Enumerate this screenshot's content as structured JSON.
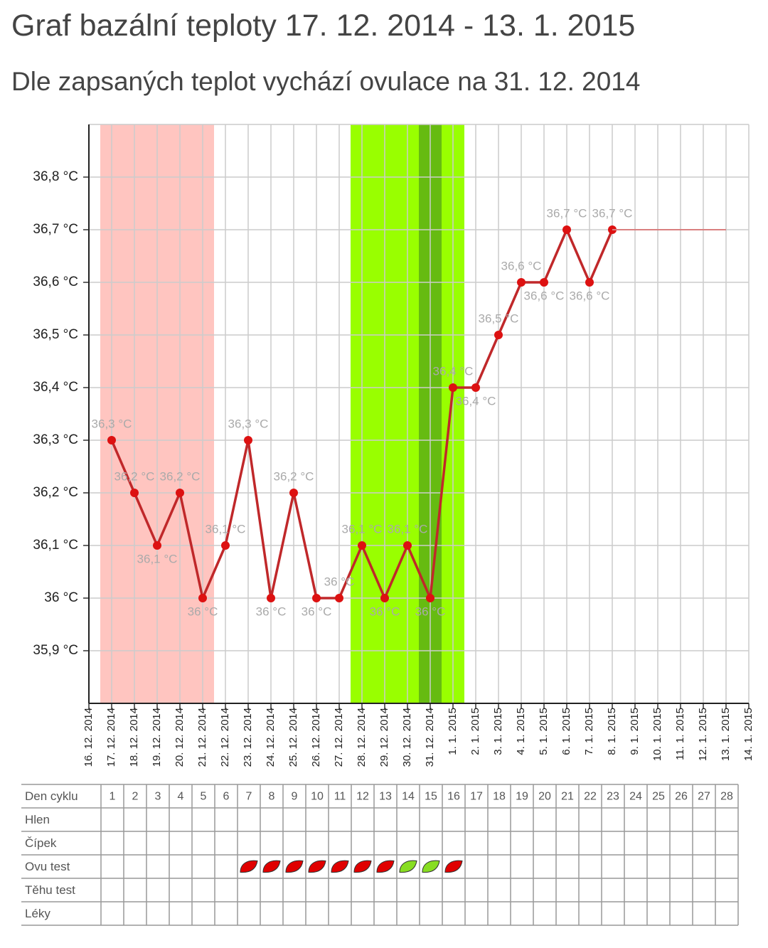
{
  "chart_data": {
    "type": "line",
    "title": "Graf bazální teploty 17. 12. 2014 - 13. 1. 2015",
    "subtitle": "Dle zapsaných teplot vychází ovulace na 31. 12. 2014",
    "categories": [
      "16. 12. 2014",
      "17. 12. 2014",
      "18. 12. 2014",
      "19. 12. 2014",
      "20. 12. 2014",
      "21. 12. 2014",
      "22. 12. 2014",
      "23. 12. 2014",
      "24. 12. 2014",
      "25. 12. 2014",
      "26. 12. 2014",
      "27. 12. 2014",
      "28. 12. 2014",
      "29. 12. 2014",
      "30. 12. 2014",
      "31. 12. 2014",
      "1. 1. 2015",
      "2. 1. 2015",
      "3. 1. 2015",
      "4. 1. 2015",
      "5. 1. 2015",
      "6. 1. 2015",
      "7. 1. 2015",
      "8. 1. 2015",
      "9. 1. 2015",
      "10. 1. 2015",
      "11. 1. 2015",
      "12. 1. 2015",
      "13. 1. 2015",
      "14. 1. 2015"
    ],
    "series": [
      {
        "color": "#c0282a",
        "values": [
          null,
          36.3,
          36.2,
          36.1,
          36.2,
          36.0,
          36.1,
          36.3,
          36.0,
          36.2,
          36.0,
          36.0,
          36.1,
          36.0,
          36.1,
          36.0,
          36.4,
          36.4,
          36.5,
          36.6,
          36.6,
          36.7,
          36.6,
          36.7,
          null,
          null,
          null,
          null,
          null,
          null
        ],
        "value_labels": [
          null,
          "36,3 °C",
          "36,2 °C",
          "36,1 °C",
          "36,2 °C",
          "36 °C",
          "36,1 °C",
          "36,3 °C",
          "36 °C",
          "36,2 °C",
          "36 °C",
          "36 °C",
          "36,1 °C",
          "36 °C",
          "36,1 °C",
          "36 °C",
          "36,4 °C",
          "36,4 °C",
          "36,5 °C",
          "36,6 °C",
          "36,6 °C",
          "36,7 °C",
          "36,6 °C",
          "36,7 °C",
          null,
          null,
          null,
          null,
          null,
          null
        ]
      },
      {
        "color": "#d98080",
        "values": [
          null,
          null,
          null,
          null,
          null,
          null,
          null,
          null,
          null,
          null,
          null,
          null,
          null,
          null,
          null,
          null,
          null,
          null,
          null,
          null,
          null,
          null,
          null,
          36.7,
          36.7,
          36.7,
          36.7,
          36.7,
          36.7,
          null
        ]
      }
    ],
    "ylim": [
      35.8,
      36.9
    ],
    "yticks": [
      {
        "value": 35.9,
        "label": "35,9 °C"
      },
      {
        "value": 36.0,
        "label": "36 °C"
      },
      {
        "value": 36.1,
        "label": "36,1 °C"
      },
      {
        "value": 36.2,
        "label": "36,2 °C"
      },
      {
        "value": 36.3,
        "label": "36,3 °C"
      },
      {
        "value": 36.4,
        "label": "36,4 °C"
      },
      {
        "value": 36.5,
        "label": "36,5 °C"
      },
      {
        "value": 36.6,
        "label": "36,6 °C"
      },
      {
        "value": 36.7,
        "label": "36,7 °C"
      },
      {
        "value": 36.8,
        "label": "36,8 °C"
      }
    ],
    "grid": true,
    "bands": [
      {
        "from": "17. 12. 2014",
        "to": "21. 12. 2014",
        "color": "#ffc5c0"
      },
      {
        "from": "28. 12. 2014",
        "to": "1. 1. 2015",
        "color": "#99ff00"
      },
      {
        "from": "31. 12. 2014",
        "to": "31. 12. 2014",
        "color": "#66bb11"
      }
    ]
  },
  "table": {
    "rows": [
      {
        "label": "Den cyklu",
        "cells": [
          1,
          2,
          3,
          4,
          5,
          6,
          7,
          8,
          9,
          10,
          11,
          12,
          13,
          14,
          15,
          16,
          17,
          18,
          19,
          20,
          21,
          22,
          23,
          24,
          25,
          26,
          27,
          28
        ]
      },
      {
        "label": "Hlen"
      },
      {
        "label": "Čípek"
      },
      {
        "label": "Ovu test",
        "icons": [
          null,
          null,
          null,
          null,
          null,
          null,
          "#e00000",
          "#e00000",
          "#e00000",
          "#e00000",
          "#e00000",
          "#e00000",
          "#e00000",
          "#88dd22",
          "#88dd22",
          "#e00000",
          null,
          null,
          null,
          null,
          null,
          null,
          null,
          null,
          null,
          null,
          null,
          null
        ]
      },
      {
        "label": "Těhu test"
      },
      {
        "label": "Léky"
      }
    ]
  }
}
